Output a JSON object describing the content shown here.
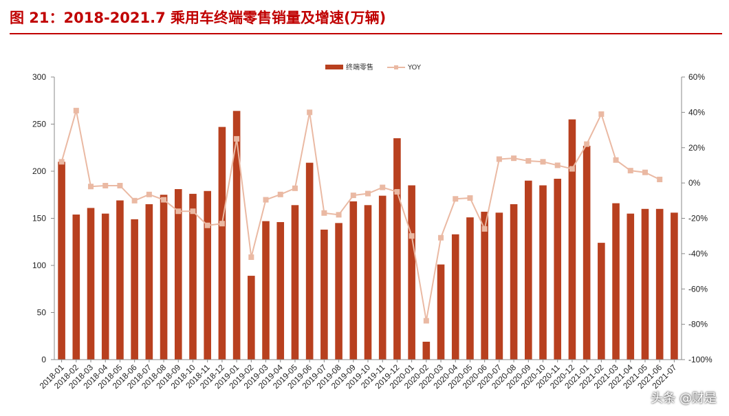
{
  "title": "图 21：2018-2021.7 乘用车终端零售销量及增速(万辆)",
  "watermark": "头条 @财是",
  "chart_data": {
    "type": "bar",
    "title": "",
    "categories": [
      "2018-01",
      "2018-02",
      "2018-03",
      "2018-04",
      "2018-05",
      "2018-06",
      "2018-07",
      "2018-08",
      "2018-09",
      "2018-10",
      "2018-11",
      "2018-12",
      "2019-01",
      "2019-02",
      "2019-03",
      "2019-04",
      "2019-05",
      "2019-06",
      "2019-07",
      "2019-08",
      "2019-09",
      "2019-10",
      "2019-11",
      "2019-12",
      "2020-01",
      "2020-02",
      "2020-03",
      "2020-04",
      "2020-05",
      "2020-06",
      "2020-07",
      "2020-08",
      "2020-09",
      "2020-10",
      "2020-11",
      "2020-12",
      "2021-01",
      "2021-02",
      "2021-03",
      "2021-04",
      "2021-05",
      "2021-06",
      "2021-07"
    ],
    "series": [
      {
        "name": "终端零售",
        "type": "bar",
        "axis": "left",
        "color": "#b8401f",
        "values": [
          210,
          154,
          161,
          155,
          169,
          149,
          165,
          175,
          181,
          176,
          179,
          247,
          264,
          89,
          147,
          146,
          164,
          209,
          138,
          145,
          168,
          164,
          174,
          235,
          185,
          19,
          101,
          133,
          151,
          157,
          156,
          165,
          190,
          185,
          192,
          255,
          227,
          124,
          166,
          155,
          160,
          160,
          156
        ]
      },
      {
        "name": "YOY",
        "type": "line",
        "axis": "right",
        "color": "#eab9a3",
        "values": [
          12,
          41,
          -2,
          -1.5,
          -1.5,
          -10,
          -6.5,
          -9.5,
          -16,
          -16,
          -24,
          -23,
          25,
          -42,
          -9.5,
          -6.5,
          -3,
          40,
          -17,
          -18,
          -7,
          -6,
          -2.5,
          -5,
          -30,
          -78,
          -31,
          -9,
          -8.5,
          -26,
          13.5,
          14,
          12.5,
          12,
          10,
          8,
          22,
          39,
          13,
          7,
          6,
          2,
          null
        ]
      }
    ],
    "y_left": {
      "min": 0,
      "max": 300,
      "ticks": [
        0,
        50,
        100,
        150,
        200,
        250,
        300
      ],
      "tick_labels": [
        "0",
        "50",
        "100",
        "150",
        "200",
        "250",
        "300"
      ]
    },
    "y_right": {
      "min": -100,
      "max": 60,
      "ticks": [
        -100,
        -80,
        -60,
        -40,
        -20,
        0,
        20,
        40,
        60
      ],
      "tick_labels": [
        "-100%",
        "-80%",
        "-60%",
        "-40%",
        "-20%",
        "0%",
        "20%",
        "40%",
        "60%"
      ]
    },
    "xlabel": "",
    "ylabel": "",
    "grid": false,
    "legend": {
      "position": "top-center",
      "labels": [
        "终端零售",
        "YOY"
      ]
    }
  }
}
